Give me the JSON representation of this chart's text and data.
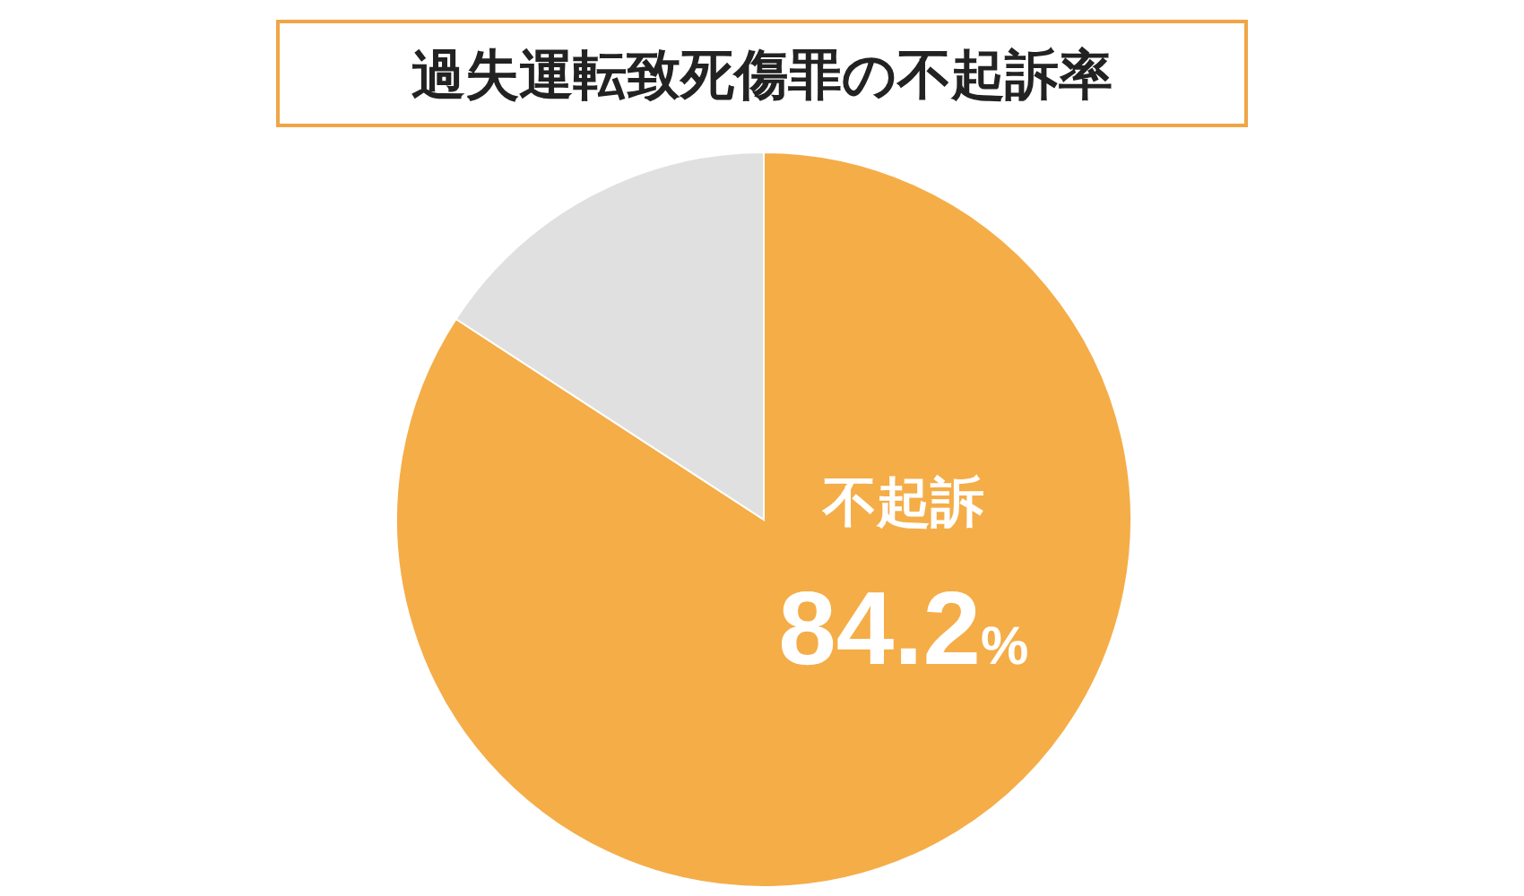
{
  "chart_data": {
    "type": "pie",
    "title": "過失運転致死傷罪の不起訴率",
    "categories": [
      "不起訴",
      null
    ],
    "values": [
      84.2,
      15.8
    ],
    "colors": [
      "#f5ad48",
      "#e0e0e0"
    ],
    "value_labels": [
      "84.2%",
      null
    ]
  }
}
